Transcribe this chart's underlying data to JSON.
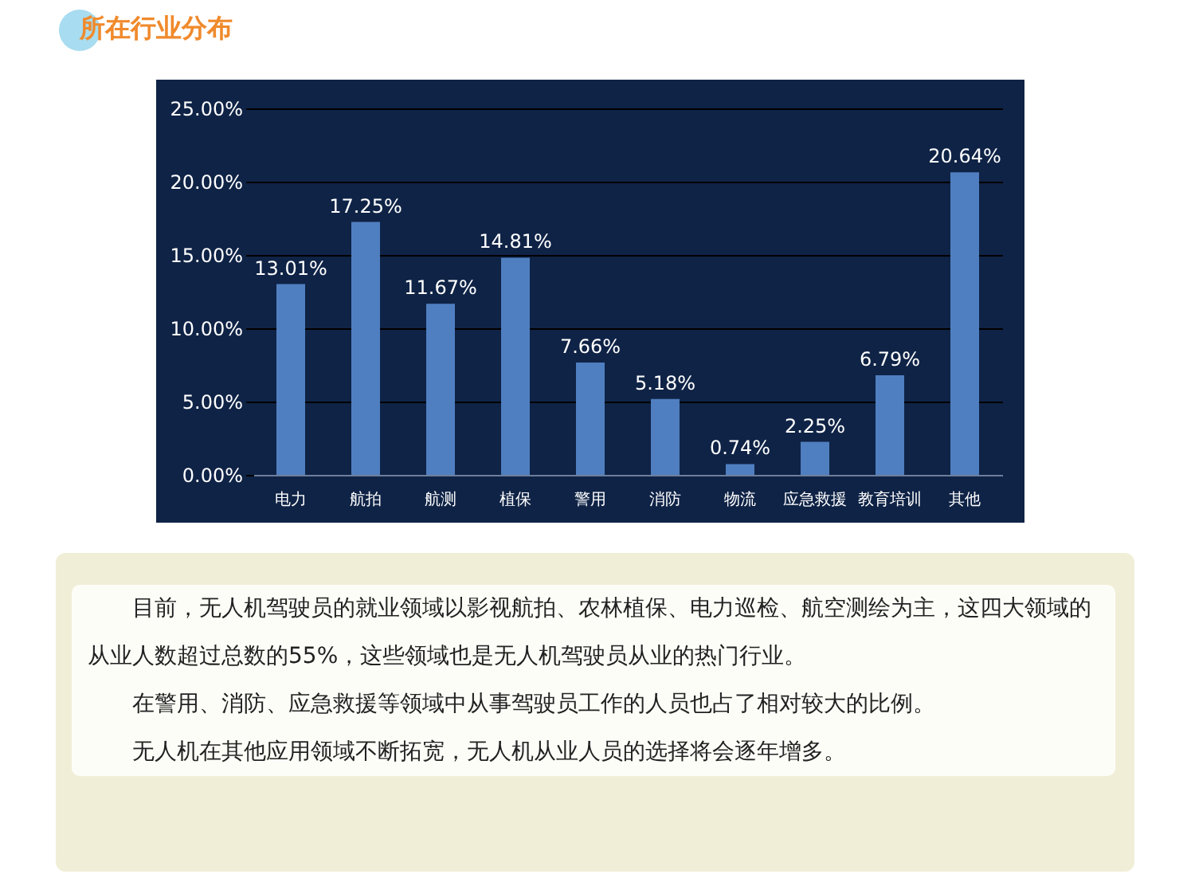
{
  "chart_data": {
    "type": "bar",
    "title": "所在行业分布",
    "categories": [
      "电力",
      "航拍",
      "航测",
      "植保",
      "警用",
      "消防",
      "物流",
      "应急救援",
      "教育培训",
      "其他"
    ],
    "values": [
      13.01,
      17.25,
      11.67,
      14.81,
      7.66,
      5.18,
      0.74,
      2.25,
      6.79,
      20.64
    ],
    "value_labels": [
      "13.01%",
      "17.25%",
      "11.67%",
      "14.81%",
      "7.66%",
      "5.18%",
      "0.74%",
      "2.25%",
      "6.79%",
      "20.64%"
    ],
    "color": "#4f7fc0",
    "ylim": [
      0,
      25
    ],
    "yticks": [
      {
        "value": 0,
        "label": "0.00%"
      },
      {
        "value": 5,
        "label": "5.00%"
      },
      {
        "value": 10,
        "label": "10.00%"
      },
      {
        "value": 15,
        "label": "15.00%"
      },
      {
        "value": 20,
        "label": "20.00%"
      },
      {
        "value": 25,
        "label": "25.00%"
      }
    ],
    "grid": "y",
    "annotations": [
      "目前，无人机驾驶员的就业领域以影视航拍、农林植保、电力巡检、航空测绘为主，这四大领域的从业人数超过总数的55%，这些领域也是无人机驾驶员从业的热门行业。",
      "在警用、消防、应急救援等领域中从事驾驶员工作的人员也占了相对较大的比例。",
      "无人机在其他应用领域不断拓宽，无人机从业人员的选择将会逐年增多。"
    ]
  }
}
